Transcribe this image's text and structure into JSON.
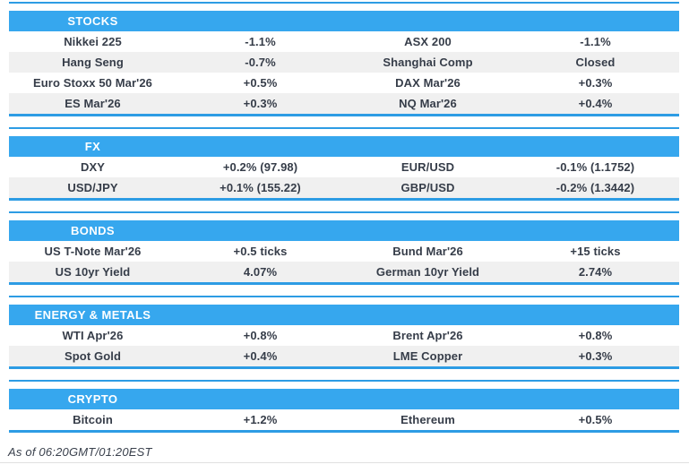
{
  "colors": {
    "header_blue": "#36a7ee",
    "rule_blue": "#2d9ce4",
    "alt_row_gray": "#f0f0f0",
    "text_dark": "#363d49",
    "hairline_gray": "#e0e0e0"
  },
  "sections": [
    {
      "id": "stocks",
      "title": "STOCKS",
      "rows": [
        [
          "Nikkei 225",
          "-1.1%",
          "ASX 200",
          "-1.1%"
        ],
        [
          "Hang Seng",
          "-0.7%",
          "Shanghai Comp",
          "Closed"
        ],
        [
          "Euro Stoxx 50 Mar'26",
          "+0.5%",
          "DAX Mar'26",
          "+0.3%"
        ],
        [
          "ES Mar'26",
          "+0.3%",
          "NQ Mar'26",
          "+0.4%"
        ]
      ]
    },
    {
      "id": "fx",
      "title": "FX",
      "rows": [
        [
          "DXY",
          "+0.2% (97.98)",
          "EUR/USD",
          "-0.1% (1.1752)"
        ],
        [
          "USD/JPY",
          "+0.1% (155.22)",
          "GBP/USD",
          "-0.2% (1.3442)"
        ]
      ]
    },
    {
      "id": "bonds",
      "title": "BONDS",
      "rows": [
        [
          "US T-Note Mar'26",
          "+0.5 ticks",
          "Bund Mar'26",
          "+15 ticks"
        ],
        [
          "US 10yr Yield",
          "4.07%",
          "German 10yr Yield",
          "2.74%"
        ]
      ]
    },
    {
      "id": "energy-metals",
      "title": "ENERGY & METALS",
      "rows": [
        [
          "WTI Apr'26",
          "+0.8%",
          "Brent Apr'26",
          "+0.8%"
        ],
        [
          "Spot Gold",
          "+0.4%",
          "LME Copper",
          "+0.3%"
        ]
      ]
    },
    {
      "id": "crypto",
      "title": "CRYPTO",
      "rows": [
        [
          "Bitcoin",
          "+1.2%",
          "Ethereum",
          "+0.5%"
        ]
      ]
    }
  ],
  "footer": {
    "as_of": "As of 06:20GMT/01:20EST"
  }
}
